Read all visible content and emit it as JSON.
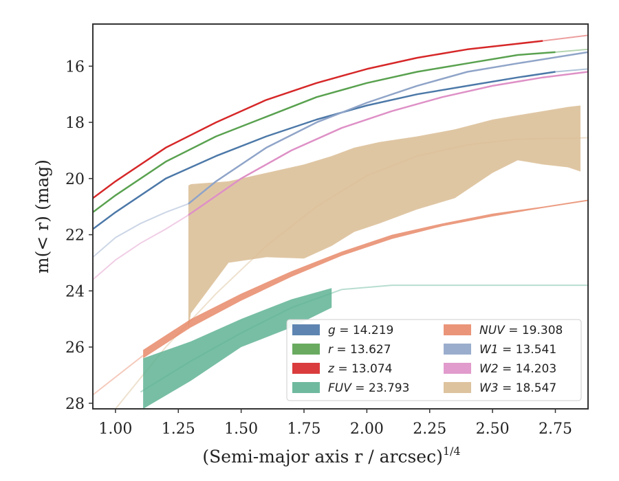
{
  "chart_data": {
    "type": "line",
    "xlabel": "(Semi-major axis r / arcsec)",
    "xlabel_superscript": "1/4",
    "ylabel": "m(< r) (mag)",
    "xlim": [
      0.91,
      2.88
    ],
    "ylim": [
      28.2,
      14.5
    ],
    "y_inverted": true,
    "xticks": [
      "1.00",
      "1.25",
      "1.50",
      "1.75",
      "2.00",
      "2.25",
      "2.50",
      "2.75"
    ],
    "xtick_values": [
      1.0,
      1.25,
      1.5,
      1.75,
      2.0,
      2.25,
      2.5,
      2.75
    ],
    "yticks": [
      "16",
      "18",
      "20",
      "22",
      "24",
      "26",
      "28"
    ],
    "ytick_values": [
      16,
      18,
      20,
      22,
      24,
      26,
      28
    ],
    "grid": false,
    "legend_position": "lower-right",
    "series": [
      {
        "name": "g = 14.219",
        "style": "curve",
        "color": "#4c78a8",
        "x": [
          0.91,
          1.0,
          1.2,
          1.4,
          1.6,
          1.8,
          2.0,
          2.2,
          2.4,
          2.6,
          2.75
        ],
        "y": [
          21.8,
          21.2,
          20.0,
          19.2,
          18.5,
          17.9,
          17.4,
          17.0,
          16.7,
          16.4,
          16.2
        ],
        "x_fit": [
          2.75,
          2.88
        ],
        "y_fit": [
          16.2,
          16.1
        ]
      },
      {
        "name": "r = 13.627",
        "style": "curve",
        "color": "#59a14f",
        "x": [
          0.91,
          1.0,
          1.2,
          1.4,
          1.6,
          1.8,
          2.0,
          2.2,
          2.4,
          2.6,
          2.75
        ],
        "y": [
          21.2,
          20.6,
          19.4,
          18.5,
          17.8,
          17.1,
          16.6,
          16.2,
          15.9,
          15.6,
          15.5
        ],
        "x_fit": [
          2.75,
          2.88
        ],
        "y_fit": [
          15.5,
          15.4
        ]
      },
      {
        "name": "z = 13.074",
        "style": "curve",
        "color": "#d62728",
        "x": [
          0.91,
          1.0,
          1.2,
          1.4,
          1.6,
          1.8,
          2.0,
          2.2,
          2.4,
          2.6,
          2.7
        ],
        "y": [
          20.7,
          20.1,
          18.9,
          18.0,
          17.2,
          16.6,
          16.1,
          15.7,
          15.4,
          15.2,
          15.1
        ],
        "x_fit": [
          2.7,
          2.88
        ],
        "y_fit": [
          15.1,
          14.9
        ]
      },
      {
        "name": "FUV = 23.793",
        "style": "band",
        "color": "#5fb394",
        "x": [
          1.11,
          1.3,
          1.5,
          1.7,
          1.86
        ],
        "y_upper": [
          26.4,
          25.8,
          25.0,
          24.3,
          23.9
        ],
        "y_lower": [
          28.2,
          27.2,
          26.0,
          25.3,
          24.6
        ],
        "x_fit": [
          1.1,
          1.3,
          1.5,
          1.7,
          1.9,
          2.1,
          2.3,
          2.5,
          2.7,
          2.88
        ],
        "y_fit": [
          27.6,
          26.5,
          25.5,
          24.6,
          23.95,
          23.8,
          23.8,
          23.8,
          23.8,
          23.8
        ]
      },
      {
        "name": "NUV = 19.308",
        "style": "band",
        "color": "#e8896a",
        "x": [
          1.11,
          1.3,
          1.5,
          1.7,
          1.9,
          2.1,
          2.3,
          2.5,
          2.7,
          2.88
        ],
        "y_upper": [
          26.1,
          25.0,
          24.1,
          23.3,
          22.6,
          22.0,
          21.6,
          21.25,
          21.0,
          20.75
        ],
        "y_lower": [
          26.4,
          25.3,
          24.35,
          23.5,
          22.75,
          22.15,
          21.7,
          21.35,
          21.05,
          20.8
        ],
        "x_fit": [
          0.91,
          1.11
        ],
        "y_fit": [
          27.7,
          26.3
        ]
      },
      {
        "name": "W1 = 13.541",
        "style": "curve",
        "color": "#8fa4c8",
        "x": [
          1.29,
          1.4,
          1.6,
          1.8,
          2.0,
          2.2,
          2.4,
          2.6,
          2.88
        ],
        "y": [
          20.9,
          20.1,
          18.9,
          18.0,
          17.3,
          16.7,
          16.2,
          15.9,
          15.5
        ],
        "x_fit": [
          0.91,
          1.0,
          1.1,
          1.2,
          1.29
        ],
        "y_fit": [
          22.8,
          22.1,
          21.6,
          21.2,
          20.9
        ]
      },
      {
        "name": "W2 = 14.203",
        "style": "curve",
        "color": "#de90c6",
        "x": [
          1.29,
          1.5,
          1.7,
          1.9,
          2.1,
          2.3,
          2.5,
          2.7,
          2.88
        ],
        "y": [
          21.3,
          20.0,
          19.0,
          18.2,
          17.6,
          17.1,
          16.7,
          16.4,
          16.2
        ],
        "x_fit": [
          0.91,
          1.0,
          1.1,
          1.2,
          1.29
        ],
        "y_fit": [
          23.6,
          22.9,
          22.3,
          21.8,
          21.3
        ]
      },
      {
        "name": "W3 = 18.547",
        "style": "band",
        "color": "#d9bc93",
        "x": [
          1.29,
          1.3,
          1.45,
          1.6,
          1.75,
          1.86,
          1.95,
          2.05,
          2.2,
          2.35,
          2.5,
          2.6,
          2.7,
          2.8,
          2.85
        ],
        "y_upper": [
          20.25,
          20.2,
          20.1,
          19.8,
          19.5,
          19.2,
          18.9,
          18.7,
          18.5,
          18.25,
          17.9,
          17.75,
          17.6,
          17.45,
          17.4
        ],
        "y_lower": [
          25.4,
          24.8,
          23.0,
          22.8,
          22.85,
          22.4,
          21.9,
          21.6,
          21.1,
          20.7,
          19.8,
          19.35,
          19.5,
          19.6,
          19.75
        ],
        "x_fit": [
          1.0,
          1.2,
          1.4,
          1.6,
          1.8,
          2.0,
          2.2,
          2.4,
          2.6,
          2.88
        ],
        "y_fit": [
          28.2,
          26.0,
          24.1,
          22.4,
          21.0,
          19.9,
          19.2,
          18.8,
          18.6,
          18.55
        ]
      }
    ]
  }
}
